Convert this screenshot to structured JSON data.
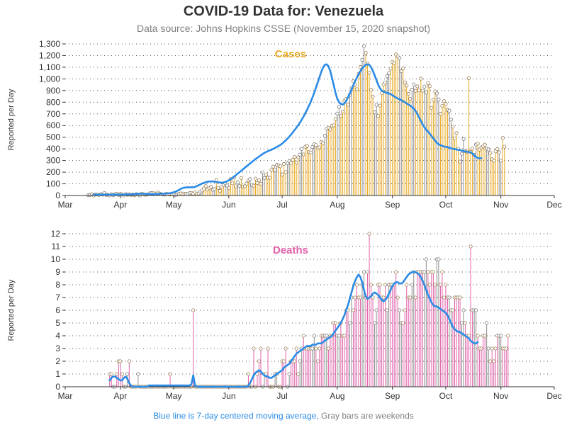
{
  "title": "COVID-19 Data for: Venezuela",
  "subtitle": "Data source: Johns Hopkins CSSE (November 15, 2020 snapshot)",
  "footnote": {
    "blue_part": "Blue line is 7-day centered moving average,",
    "gray_part": "Gray bars are weekends"
  },
  "colors": {
    "cases": "#e8a820",
    "deaths": "#e060a8",
    "moving_average": "#2b8be6",
    "weekend": "#8c8c8c",
    "grid": "#555555",
    "axis": "#333333"
  },
  "chart_data": [
    {
      "type": "bar",
      "panel": "Cases",
      "title": "Cases",
      "ylabel": "Reported per Day",
      "ylim": [
        0,
        1300
      ],
      "yticks": [
        0,
        100,
        200,
        300,
        400,
        500,
        600,
        700,
        800,
        900,
        1000,
        1100,
        1200,
        1300
      ],
      "ytick_labels": [
        "0",
        "100",
        "200",
        "300",
        "400",
        "500",
        "600",
        "700",
        "800",
        "900",
        "1,000",
        "1,100",
        "1,200",
        "1,300"
      ],
      "x_domain": [
        "2020-03-01",
        "2020-12-01"
      ],
      "xtick_labels": [
        "Mar",
        "Apr",
        "May",
        "Jun",
        "Jul",
        "Aug",
        "Sep",
        "Oct",
        "Nov",
        "Dec"
      ],
      "grid": "horizontal dotted",
      "series": [
        {
          "type": "bar",
          "start_date": "2020-03-14",
          "values": [
            2,
            5,
            10,
            0,
            8,
            9,
            3,
            12,
            7,
            20,
            5,
            6,
            0,
            11,
            2,
            10,
            14,
            5,
            13,
            8,
            0,
            12,
            6,
            10,
            3,
            9,
            2,
            11,
            7,
            0,
            15,
            10,
            6,
            8,
            12,
            20,
            22,
            18,
            14,
            25,
            17,
            11,
            9,
            7,
            14,
            10,
            8,
            12,
            16,
            5,
            9,
            13,
            18,
            11,
            15,
            14,
            10,
            20,
            22,
            16,
            25,
            15,
            18,
            34,
            44,
            60,
            80,
            52,
            63,
            74,
            48,
            55,
            135,
            66,
            40,
            72,
            90,
            105,
            85,
            63,
            140,
            104,
            155,
            78,
            114,
            82,
            150,
            77,
            79,
            102,
            129,
            140,
            88,
            84,
            145,
            106,
            130,
            101,
            198,
            150,
            179,
            152,
            152,
            220,
            248,
            217,
            263,
            255,
            250,
            179,
            270,
            201,
            276,
            295,
            278,
            307,
            331,
            282,
            327,
            351,
            399,
            352,
            418,
            425,
            372,
            369,
            416,
            439,
            432,
            408,
            413,
            459,
            449,
            512,
            571,
            581,
            566,
            598,
            602,
            656,
            703,
            759,
            681,
            720,
            814,
            828,
            779,
            862,
            921,
            979,
            952,
            911,
            1042,
            1102,
            1164,
            1281,
            1224,
            1132,
            1053,
            906,
            849,
            714,
            776,
            681,
            771,
            877,
            953,
            968,
            1023,
            1051,
            1088,
            1145,
            1134,
            1209,
            1192,
            1178,
            1065,
            1089,
            970,
            943,
            872,
            829,
            906,
            953,
            898,
            936,
            901,
            1002,
            899,
            934,
            885,
            962,
            937,
            752,
            821,
            893,
            875,
            824,
            701,
            769,
            809,
            786,
            734,
            727,
            651,
            590,
            490,
            535,
            400,
            291,
            358,
            484,
            381,
            376,
            1005,
            373,
            402,
            349,
            437,
            445,
            394,
            412,
            422,
            436,
            401,
            395,
            365,
            311,
            298,
            378,
            398,
            370,
            299,
            493,
            419
          ]
        },
        {
          "type": "line",
          "name": "7-day centered moving average",
          "start_date": "2020-03-17",
          "values": [
            8,
            8,
            7,
            7,
            7,
            7,
            8,
            7,
            8,
            8,
            7,
            7,
            8,
            8,
            8,
            8,
            8,
            8,
            9,
            9,
            10,
            11,
            12,
            13,
            14,
            14,
            15,
            15,
            15,
            14,
            13,
            12,
            11,
            11,
            11,
            12,
            13,
            14,
            15,
            16,
            17,
            17,
            18,
            20,
            23,
            28,
            33,
            40,
            48,
            57,
            63,
            67,
            69,
            71,
            70,
            71,
            71,
            74,
            80,
            88,
            95,
            103,
            108,
            113,
            118,
            120,
            120,
            120,
            118,
            116,
            113,
            111,
            110,
            112,
            116,
            122,
            130,
            140,
            150,
            162,
            175,
            188,
            200,
            212,
            225,
            238,
            250,
            262,
            275,
            288,
            300,
            312,
            323,
            334,
            345,
            356,
            365,
            373,
            380,
            387,
            393,
            400,
            408,
            416,
            425,
            434,
            445,
            458,
            472,
            488,
            505,
            523,
            542,
            562,
            582,
            603,
            625,
            650,
            676,
            705,
            735,
            768,
            802,
            840,
            880,
            925,
            970,
            1015,
            1060,
            1098,
            1120,
            1125,
            1110,
            1070,
            1010,
            945,
            880,
            830,
            800,
            785,
            780,
            790,
            810,
            840,
            875,
            910,
            945,
            980,
            1010,
            1040,
            1068,
            1090,
            1108,
            1120,
            1125,
            1120,
            1100,
            1070,
            1030,
            990,
            950,
            920,
            900,
            890,
            885,
            880,
            875,
            870,
            860,
            850,
            840,
            832,
            825,
            818,
            810,
            800,
            790,
            780,
            770,
            760,
            745,
            725,
            700,
            670,
            640,
            610,
            585,
            565,
            548,
            530,
            510,
            490,
            470,
            450,
            440,
            432,
            425,
            420,
            418,
            415,
            410,
            405,
            400,
            398,
            395,
            392,
            390,
            385,
            380,
            378,
            375,
            372,
            370,
            360,
            345,
            330,
            322,
            318,
            320
          ]
        }
      ]
    },
    {
      "type": "bar",
      "panel": "Deaths",
      "title": "Deaths",
      "ylabel": "Reported per Day",
      "ylim": [
        0,
        12
      ],
      "yticks": [
        0,
        1,
        2,
        3,
        4,
        5,
        6,
        7,
        8,
        9,
        10,
        11,
        12
      ],
      "ytick_labels": [
        "0",
        "1",
        "2",
        "3",
        "4",
        "5",
        "6",
        "7",
        "8",
        "9",
        "10",
        "11",
        "12"
      ],
      "x_domain": [
        "2020-03-01",
        "2020-12-01"
      ],
      "xtick_labels": [
        "Mar",
        "Apr",
        "May",
        "Jun",
        "Jul",
        "Aug",
        "Sep",
        "Oct",
        "Nov",
        "Dec"
      ],
      "grid": "horizontal dotted",
      "series": [
        {
          "type": "bar",
          "start_date": "2020-03-26",
          "values": [
            1,
            1,
            0,
            0,
            1,
            2,
            2,
            1,
            0,
            0,
            1,
            2,
            0,
            0,
            0,
            0,
            1,
            0,
            0,
            0,
            0,
            0,
            0,
            0,
            0,
            0,
            0,
            0,
            0,
            0,
            0,
            0,
            0,
            0,
            1,
            0,
            0,
            0,
            0,
            0,
            0,
            0,
            0,
            0,
            0,
            0,
            0,
            6,
            0,
            0,
            0,
            0,
            0,
            0,
            0,
            0,
            0,
            0,
            0,
            0,
            0,
            0,
            0,
            0,
            0,
            0,
            0,
            0,
            0,
            0,
            0,
            0,
            0,
            0,
            0,
            0,
            0,
            0,
            1,
            0,
            0,
            3,
            0,
            1,
            2,
            3,
            0,
            1,
            1,
            3,
            0,
            0,
            0,
            1,
            1,
            0,
            0,
            2,
            2,
            3,
            0,
            1,
            2,
            2,
            2,
            3,
            1,
            2,
            3,
            4,
            3,
            3,
            3,
            3,
            3,
            4,
            3,
            2,
            3,
            4,
            4,
            4,
            4,
            3,
            4,
            4,
            5,
            5,
            4,
            4,
            5,
            4,
            4,
            6,
            6,
            5,
            7,
            6,
            7,
            8,
            7,
            7,
            8,
            9,
            7,
            9,
            12,
            8,
            7,
            5,
            6,
            8,
            8,
            7,
            7,
            8,
            6,
            8,
            8,
            8,
            8,
            9,
            7,
            6,
            5,
            5,
            6,
            8,
            7,
            7,
            8,
            9,
            7,
            9,
            9,
            9,
            9,
            9,
            10,
            9,
            8,
            9,
            9,
            8,
            10,
            10,
            8,
            9,
            7,
            8,
            7,
            7,
            6,
            6,
            7,
            7,
            7,
            7,
            5,
            6,
            5,
            4,
            4,
            11,
            6,
            6,
            6,
            4,
            3,
            3,
            4,
            4,
            5,
            3,
            2,
            3,
            2,
            3,
            4,
            4,
            4,
            3,
            3,
            3,
            4
          ]
        },
        {
          "type": "line",
          "name": "7-day centered moving average",
          "start_date": "2020-03-26",
          "values": [
            0.5,
            0.7,
            0.8,
            0.8,
            0.7,
            0.6,
            0.5,
            0.5,
            0.7,
            0.8,
            0.6,
            0.3,
            0.1,
            0,
            0,
            0,
            0,
            0,
            0,
            0,
            0,
            0,
            0.1,
            0.1,
            0.1,
            0.1,
            0.1,
            0.1,
            0.1,
            0.1,
            0.1,
            0.1,
            0.1,
            0.1,
            0.1,
            0.1,
            0.1,
            0.1,
            0.1,
            0.1,
            0.1,
            0.1,
            0.1,
            0.1,
            0.1,
            0.1,
            0.2,
            0.9,
            0.1,
            0,
            0,
            0,
            0,
            0,
            0,
            0,
            0,
            0,
            0,
            0,
            0,
            0,
            0,
            0,
            0,
            0,
            0,
            0,
            0,
            0,
            0,
            0,
            0,
            0,
            0,
            0,
            0,
            0,
            0.1,
            0.3,
            0.6,
            0.9,
            1.1,
            1.2,
            1.3,
            1.2,
            1.0,
            0.9,
            0.8,
            0.8,
            0.7,
            0.7,
            0.8,
            0.9,
            1.0,
            1.1,
            1.2,
            1.3,
            1.5,
            1.6,
            1.7,
            1.8,
            2.0,
            2.2,
            2.4,
            2.6,
            2.7,
            2.8,
            2.9,
            3.0,
            3.1,
            3.2,
            3.2,
            3.2,
            3.3,
            3.3,
            3.3,
            3.4,
            3.4,
            3.4,
            3.5,
            3.6,
            3.7,
            3.8,
            3.9,
            4.0,
            4.2,
            4.4,
            4.6,
            4.8,
            5.0,
            5.3,
            5.6,
            6.0,
            6.4,
            6.9,
            7.4,
            7.9,
            8.3,
            8.6,
            8.8,
            8.6,
            8.2,
            7.6,
            7.1,
            6.9,
            7.0,
            7.1,
            7.3,
            7.4,
            7.3,
            7.2,
            7.0,
            6.8,
            6.7,
            6.8,
            7.0,
            7.3,
            7.6,
            7.9,
            8.1,
            8.2,
            8.2,
            8.1,
            8.1,
            8.2,
            8.4,
            8.6,
            8.8,
            8.9,
            9.0,
            9.0,
            9.0,
            8.9,
            8.8,
            8.6,
            8.3,
            8.0,
            7.6,
            7.2,
            6.9,
            6.6,
            6.4,
            6.3,
            6.3,
            6.2,
            6.1,
            6.0,
            5.9,
            5.8,
            5.6,
            5.3,
            5.0,
            4.7,
            4.5,
            4.4,
            4.3,
            4.3,
            4.2,
            4.1,
            4.0,
            3.9,
            3.8,
            3.6,
            3.5,
            3.4,
            3.4,
            3.5
          ]
        }
      ]
    }
  ]
}
